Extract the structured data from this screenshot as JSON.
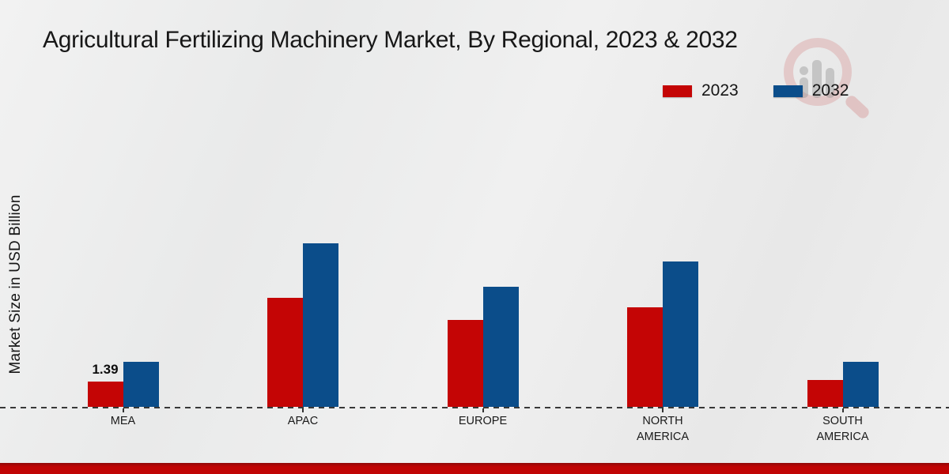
{
  "title": "Agricultural Fertilizing Machinery Market, By Regional, 2023 & 2032",
  "y_axis_title": "Market Size in USD Billion",
  "legend": [
    {
      "label": "2023",
      "color": "#c40505"
    },
    {
      "label": "2032",
      "color": "#0b4d8a"
    }
  ],
  "chart_data": {
    "type": "bar",
    "title": "Agricultural Fertilizing Machinery Market, By Regional, 2023 & 2032",
    "categories": [
      "MEA",
      "APAC",
      "EUROPE",
      "NORTH AMERICA",
      "SOUTH AMERICA"
    ],
    "series": [
      {
        "name": "2023",
        "color": "#c40505",
        "values": [
          1.39,
          6.0,
          4.8,
          5.5,
          1.5
        ]
      },
      {
        "name": "2032",
        "color": "#0b4d8a",
        "values": [
          2.5,
          9.0,
          6.6,
          8.0,
          2.5
        ]
      }
    ],
    "xlabel": "",
    "ylabel": "Market Size in USD Billion",
    "ylim": [
      0,
      10
    ],
    "grid": false,
    "baseline_style": "dashed",
    "legend_position": "top-right",
    "annotations": [
      {
        "category": "MEA",
        "series": "2023",
        "text": "1.39"
      }
    ]
  },
  "watermark": {
    "name": "market-research-future-logo"
  },
  "footer": {
    "color": "#c00404"
  }
}
